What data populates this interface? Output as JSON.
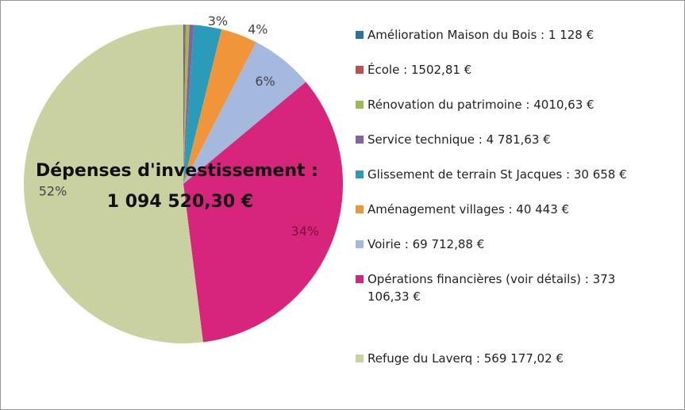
{
  "chart_data": {
    "type": "pie",
    "title": "Dépenses d'investissement :",
    "subtitle": "1 094 520,30 €",
    "categories": [
      "Amélioration Maison du Bois : 1 128 €",
      "École : 1502,81 €",
      "Rénovation du patrimoine : 4010,63 €",
      "Service technique : 4 781,63 €",
      "Glissement de terrain St Jacques : 30 658 €",
      "Aménagement villages : 40 443 €",
      "Voirie : 69 712,88 €",
      "Opérations financières (voir détails) : 373 106,33 €",
      "Refuge du Laverq : 569 177,02 €"
    ],
    "values": [
      0.1,
      0.14,
      0.37,
      0.44,
      2.8,
      3.7,
      6.4,
      34.1,
      52
    ],
    "value_labels": [
      null,
      null,
      null,
      null,
      "3%",
      "4%",
      "6%",
      "34%",
      "52%"
    ],
    "colors": [
      "#2e6fa8",
      "#c0504d",
      "#9bbb59",
      "#8064a2",
      "#2a9bb8",
      "#f0953a",
      "#a5b8de",
      "#d6257a",
      "#c9d1a0"
    ],
    "legend": "right"
  }
}
